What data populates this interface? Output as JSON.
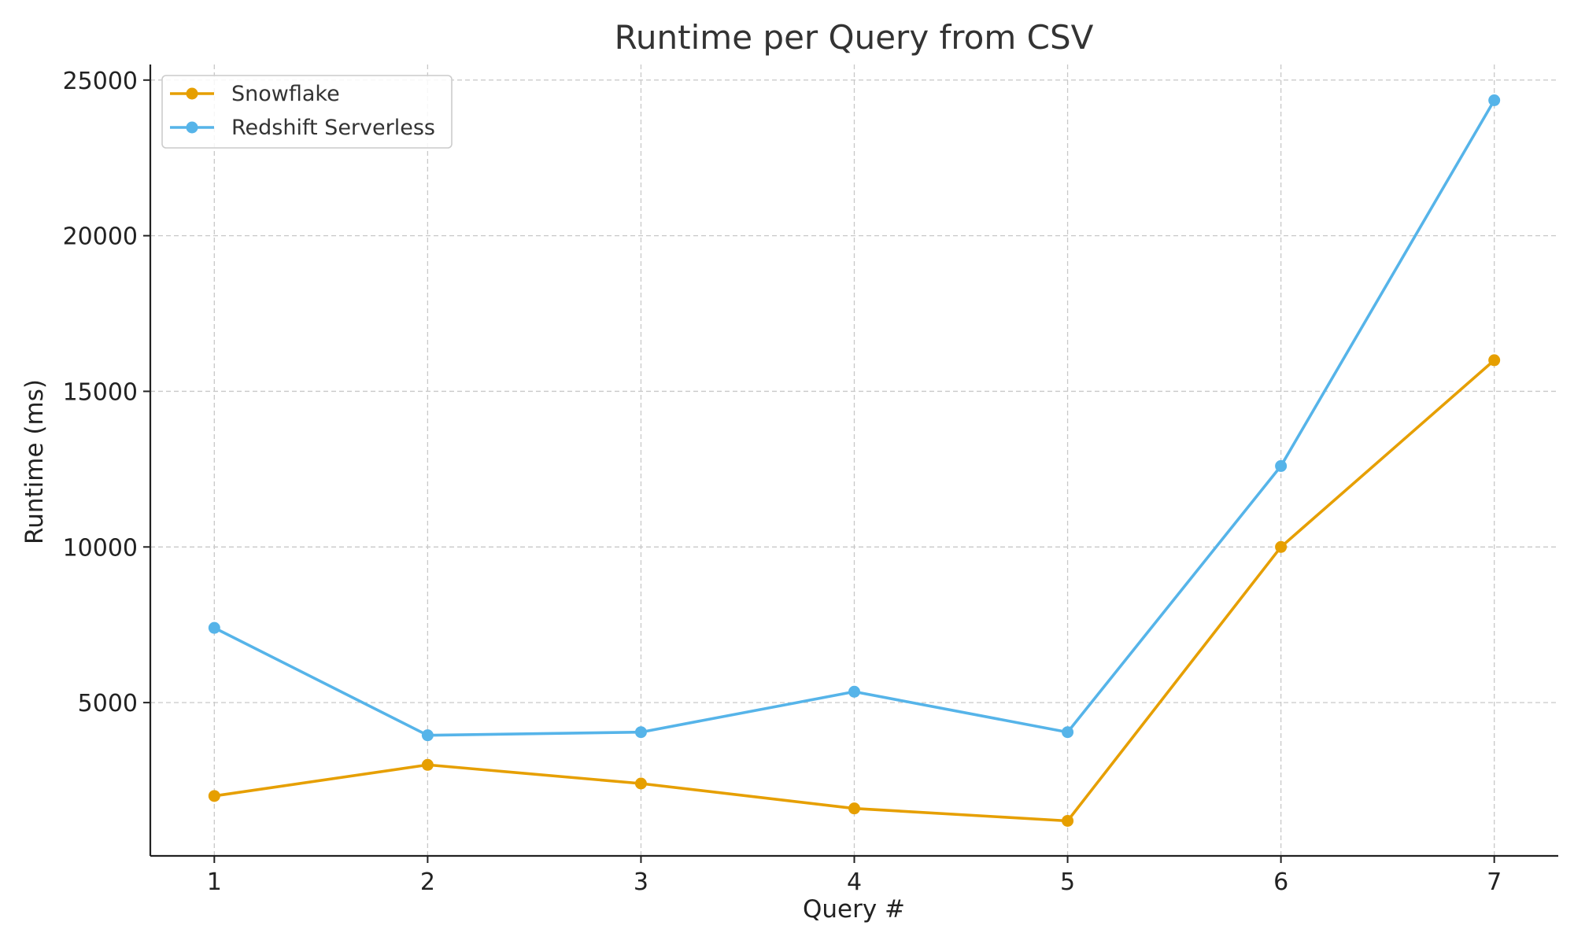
{
  "chart_data": {
    "type": "line",
    "title": "Runtime per Query from CSV",
    "xlabel": "Query #",
    "ylabel": "Runtime (ms)",
    "x": [
      1,
      2,
      3,
      4,
      5,
      6,
      7
    ],
    "x_ticks": [
      "1",
      "2",
      "3",
      "4",
      "5",
      "6",
      "7"
    ],
    "xlim": [
      0.7,
      7.3
    ],
    "y_ticks": [
      "5000",
      "10000",
      "15000",
      "20000",
      "25000"
    ],
    "y_tick_values": [
      5000,
      10000,
      15000,
      20000,
      25000
    ],
    "ylim": [
      75,
      25500
    ],
    "grid": true,
    "legend_position": "top-left",
    "series": [
      {
        "name": "Snowflake",
        "color": "#E69F00",
        "values": [
          2000,
          3000,
          2400,
          1600,
          1200,
          10000,
          16000
        ]
      },
      {
        "name": "Redshift Serverless",
        "color": "#56B4E9",
        "values": [
          7400,
          3950,
          4050,
          5350,
          4050,
          12600,
          24350
        ]
      }
    ]
  }
}
